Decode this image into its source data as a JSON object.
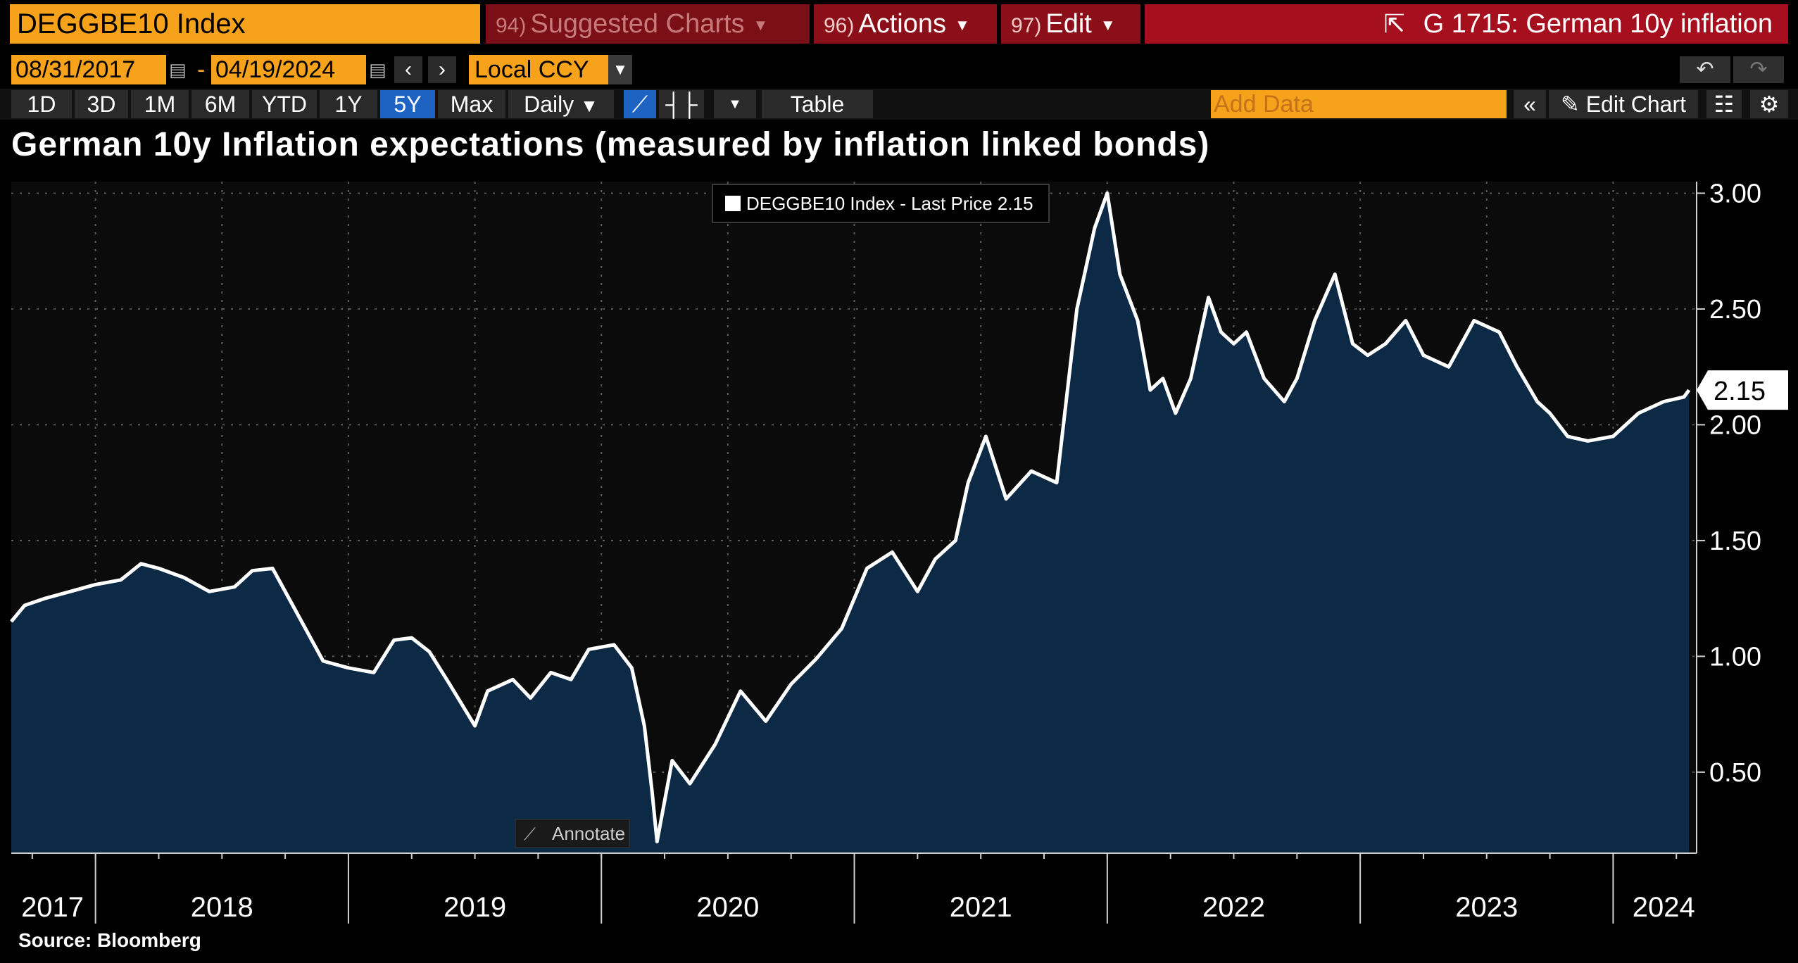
{
  "header": {
    "ticker": "DEGGBE10 Index",
    "suggested_num": "94)",
    "suggested_label": "Suggested Charts",
    "actions_num": "96)",
    "actions_label": "Actions",
    "edit_num": "97)",
    "edit_label": "Edit",
    "window_title": "G 1715: German 10y inflation"
  },
  "dates": {
    "start": "08/31/2017",
    "end": "04/19/2024",
    "separator": "-",
    "currency": "Local CCY"
  },
  "ranges": {
    "items": [
      "1D",
      "3D",
      "1M",
      "6M",
      "YTD",
      "1Y",
      "5Y",
      "Max"
    ],
    "active": "5Y",
    "frequency": "Daily",
    "table_label": "Table",
    "add_data_placeholder": "Add Data",
    "edit_chart_label": "Edit Chart"
  },
  "chart_data": {
    "type": "area",
    "title": "German 10y Inflation expectations (measured by inflation linked bonds)",
    "legend": "DEGGBE10 Index - Last Price 2.15",
    "legend_position": "top-center",
    "last_value_label": "2.15",
    "source": "Source: Bloomberg",
    "annotate_label": "Annotate",
    "ylim": [
      0.15,
      3.05
    ],
    "y_ticks": [
      "3.00",
      "2.50",
      "2.00",
      "1.50",
      "1.00",
      "0.50"
    ],
    "y_tick_values": [
      3.0,
      2.5,
      2.0,
      1.5,
      1.0,
      0.5
    ],
    "xlim": [
      2017.667,
      2024.33
    ],
    "x_tick_labels": [
      "2017",
      "2018",
      "2019",
      "2020",
      "2021",
      "2022",
      "2023",
      "2024"
    ],
    "x_tick_label_values": [
      2017.83,
      2018.5,
      2019.5,
      2020.5,
      2021.5,
      2022.5,
      2023.5,
      2024.2
    ],
    "year_boundaries": [
      2018,
      2019,
      2020,
      2021,
      2022,
      2023,
      2024
    ],
    "series": [
      {
        "name": "DEGGBE10 Index - Last Price",
        "x": [
          2017.667,
          2017.72,
          2017.8,
          2017.9,
          2018.0,
          2018.1,
          2018.18,
          2018.25,
          2018.35,
          2018.45,
          2018.55,
          2018.62,
          2018.7,
          2018.78,
          2018.9,
          2019.0,
          2019.1,
          2019.18,
          2019.25,
          2019.32,
          2019.4,
          2019.5,
          2019.55,
          2019.65,
          2019.72,
          2019.8,
          2019.88,
          2019.95,
          2020.05,
          2020.12,
          2020.17,
          2020.2,
          2020.22,
          2020.28,
          2020.35,
          2020.45,
          2020.55,
          2020.65,
          2020.75,
          2020.85,
          2020.95,
          2021.05,
          2021.15,
          2021.25,
          2021.32,
          2021.4,
          2021.45,
          2021.52,
          2021.6,
          2021.7,
          2021.8,
          2021.88,
          2021.95,
          2022.0,
          2022.05,
          2022.12,
          2022.17,
          2022.22,
          2022.27,
          2022.33,
          2022.4,
          2022.45,
          2022.5,
          2022.55,
          2022.62,
          2022.7,
          2022.75,
          2022.82,
          2022.9,
          2022.97,
          2023.03,
          2023.1,
          2023.18,
          2023.25,
          2023.35,
          2023.45,
          2023.55,
          2023.62,
          2023.7,
          2023.75,
          2023.82,
          2023.9,
          2024.0,
          2024.1,
          2024.2,
          2024.28,
          2024.3
        ],
        "values": [
          1.15,
          1.22,
          1.25,
          1.28,
          1.31,
          1.33,
          1.4,
          1.38,
          1.34,
          1.28,
          1.3,
          1.37,
          1.38,
          1.22,
          0.98,
          0.95,
          0.93,
          1.07,
          1.08,
          1.02,
          0.88,
          0.7,
          0.85,
          0.9,
          0.82,
          0.93,
          0.9,
          1.03,
          1.05,
          0.95,
          0.7,
          0.42,
          0.2,
          0.55,
          0.45,
          0.62,
          0.85,
          0.72,
          0.88,
          0.99,
          1.12,
          1.38,
          1.45,
          1.28,
          1.42,
          1.5,
          1.75,
          1.95,
          1.68,
          1.8,
          1.75,
          2.5,
          2.85,
          3.0,
          2.65,
          2.45,
          2.15,
          2.2,
          2.05,
          2.2,
          2.55,
          2.4,
          2.35,
          2.4,
          2.2,
          2.1,
          2.2,
          2.45,
          2.65,
          2.35,
          2.3,
          2.35,
          2.45,
          2.3,
          2.25,
          2.45,
          2.4,
          2.25,
          2.1,
          2.05,
          1.95,
          1.93,
          1.95,
          2.05,
          2.1,
          2.12,
          2.15
        ]
      }
    ]
  }
}
